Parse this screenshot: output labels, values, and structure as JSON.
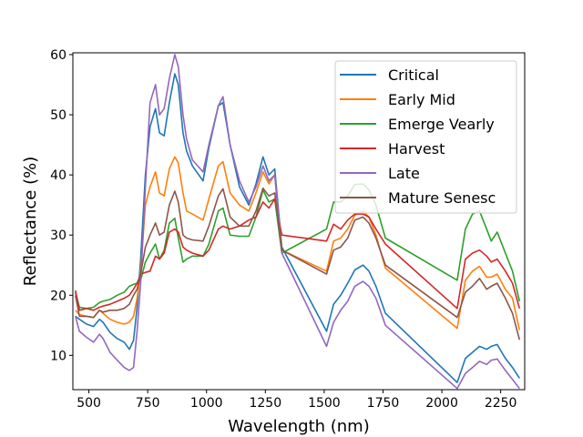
{
  "chart_data": {
    "type": "line",
    "title": "",
    "xlabel": "Wavelength (nm)",
    "ylabel": "Reflectance (%)",
    "xlim": [
      432,
      2352
    ],
    "ylim": [
      4.3,
      60.3
    ],
    "xticks": [
      500,
      750,
      1000,
      1250,
      1500,
      1750,
      2000,
      2250
    ],
    "yticks": [
      10,
      20,
      30,
      40,
      50,
      60
    ],
    "grid": false,
    "legend_position": "upper right",
    "series": [
      {
        "name": "Critical",
        "color": "#1f77b4",
        "x": [
          443,
          460,
          490,
          520,
          545,
          560,
          590,
          620,
          650,
          672,
          690,
          705,
          720,
          740,
          760,
          783,
          800,
          820,
          842,
          865,
          880,
          900,
          915,
          940,
          985,
          1010,
          1050,
          1070,
          1100,
          1140,
          1180,
          1210,
          1240,
          1265,
          1290,
          1320,
          1510,
          1540,
          1570,
          1600,
          1630,
          1665,
          1690,
          1720,
          1760,
          2065,
          2100,
          2130,
          2160,
          2190,
          2210,
          2235,
          2270,
          2300,
          2330
        ],
        "y": [
          16.5,
          16,
          15.2,
          14.8,
          16,
          15.5,
          13.8,
          12.8,
          12.2,
          11,
          12.5,
          18,
          26,
          40,
          48,
          51,
          47,
          46.5,
          52,
          56.8,
          55,
          47,
          44,
          41.5,
          39,
          44.5,
          51.5,
          52,
          45,
          38,
          35,
          38.5,
          43,
          40,
          41,
          28,
          14,
          18.5,
          20,
          22,
          24.2,
          25,
          24,
          21.5,
          17,
          5.5,
          9.5,
          10.5,
          11.5,
          11,
          11.5,
          11.8,
          9.5,
          8,
          6.2
        ]
      },
      {
        "name": "Early Mid",
        "color": "#ff7f0e",
        "x": [
          443,
          460,
          490,
          520,
          545,
          560,
          590,
          620,
          650,
          672,
          690,
          705,
          720,
          740,
          760,
          783,
          800,
          820,
          842,
          865,
          880,
          900,
          915,
          940,
          985,
          1010,
          1050,
          1070,
          1100,
          1140,
          1180,
          1210,
          1240,
          1265,
          1290,
          1320,
          1510,
          1540,
          1570,
          1600,
          1630,
          1665,
          1690,
          1720,
          1760,
          2065,
          2100,
          2130,
          2160,
          2190,
          2210,
          2235,
          2270,
          2300,
          2330
        ],
        "y": [
          17.5,
          16.8,
          16.5,
          16.3,
          17.5,
          17,
          16,
          15.5,
          15.2,
          15.5,
          16.5,
          19.5,
          24,
          35,
          38,
          40.5,
          37,
          36.5,
          41,
          43,
          42,
          37,
          34,
          33.5,
          32.5,
          36,
          41.5,
          42.2,
          37,
          35,
          34,
          37,
          40.5,
          38.5,
          40,
          27.5,
          24,
          29,
          29.5,
          31,
          33.3,
          34,
          33,
          30,
          24.5,
          14.5,
          22.5,
          24,
          24.8,
          23,
          23,
          23.5,
          21,
          19.5,
          14.2
        ]
      },
      {
        "name": "Emerge Vearly",
        "color": "#2ca02c",
        "x": [
          443,
          460,
          490,
          520,
          545,
          560,
          590,
          620,
          650,
          672,
          690,
          705,
          720,
          740,
          760,
          783,
          800,
          820,
          842,
          865,
          880,
          900,
          915,
          940,
          985,
          1010,
          1050,
          1070,
          1100,
          1140,
          1180,
          1210,
          1240,
          1265,
          1290,
          1320,
          1510,
          1540,
          1570,
          1600,
          1630,
          1665,
          1690,
          1720,
          1760,
          2065,
          2100,
          2130,
          2160,
          2190,
          2210,
          2235,
          2270,
          2300,
          2330
        ],
        "y": [
          20.5,
          18,
          17.8,
          18,
          18.8,
          19,
          19.3,
          20,
          20.5,
          21.5,
          21.8,
          22,
          22.5,
          25.5,
          27,
          28.5,
          26,
          27.5,
          32,
          32.8,
          29.5,
          25.5,
          26,
          26.5,
          26.5,
          28.5,
          34,
          34.5,
          30,
          29.8,
          29.8,
          33,
          37.5,
          35.5,
          36,
          27,
          31,
          35.5,
          35.5,
          36.5,
          38.4,
          38.5,
          37.5,
          35,
          29.5,
          22.5,
          31,
          33.5,
          34,
          31,
          29,
          30.5,
          27,
          24,
          19
        ]
      },
      {
        "name": "Harvest",
        "color": "#d62728",
        "x": [
          443,
          460,
          490,
          520,
          545,
          560,
          590,
          620,
          650,
          672,
          690,
          705,
          720,
          740,
          760,
          783,
          800,
          820,
          842,
          865,
          880,
          900,
          915,
          940,
          985,
          1010,
          1050,
          1070,
          1100,
          1140,
          1180,
          1210,
          1240,
          1265,
          1290,
          1320,
          1510,
          1540,
          1570,
          1600,
          1630,
          1665,
          1690,
          1720,
          1760,
          2065,
          2100,
          2130,
          2160,
          2190,
          2210,
          2235,
          2270,
          2300,
          2330
        ],
        "y": [
          20.8,
          17.5,
          17.8,
          17.5,
          18,
          18.2,
          18.5,
          19,
          19.5,
          20,
          21,
          22,
          23.5,
          23.8,
          24,
          26.5,
          26,
          27,
          30.5,
          31,
          30.5,
          28,
          27.5,
          27,
          26.5,
          27.5,
          31,
          31.5,
          31,
          31.5,
          32.5,
          33,
          35.5,
          34.5,
          36,
          30,
          29,
          31.8,
          31,
          32.5,
          33.5,
          33.5,
          33,
          31,
          28.5,
          17.8,
          26,
          27,
          27.5,
          26.5,
          25.5,
          26,
          24,
          22,
          17.8
        ]
      },
      {
        "name": "Late",
        "color": "#9467bd",
        "x": [
          443,
          460,
          490,
          520,
          545,
          560,
          590,
          620,
          650,
          672,
          690,
          705,
          720,
          740,
          760,
          783,
          800,
          820,
          842,
          865,
          880,
          900,
          915,
          940,
          985,
          1010,
          1050,
          1070,
          1100,
          1140,
          1180,
          1210,
          1240,
          1265,
          1290,
          1320,
          1510,
          1540,
          1570,
          1600,
          1630,
          1665,
          1690,
          1720,
          1760,
          2065,
          2100,
          2130,
          2160,
          2190,
          2210,
          2235,
          2270,
          2300,
          2330
        ],
        "y": [
          16.5,
          14,
          13,
          12.2,
          13.5,
          12.8,
          10.5,
          9.2,
          8,
          7.5,
          8,
          14,
          22,
          38,
          52,
          55,
          50,
          51,
          56,
          60,
          58,
          50,
          46,
          42.5,
          40.5,
          45,
          51.5,
          53,
          45,
          39,
          35.5,
          38,
          41.5,
          39,
          40,
          27,
          11.5,
          15.5,
          17.5,
          19,
          21.5,
          22.3,
          21.5,
          19.5,
          15,
          4.5,
          7,
          8,
          9,
          8.5,
          9.2,
          9.4,
          7.5,
          6,
          4.5
        ]
      },
      {
        "name": "Mature Senesc",
        "color": "#8c564b",
        "x": [
          443,
          460,
          490,
          520,
          545,
          560,
          590,
          620,
          650,
          672,
          690,
          705,
          720,
          740,
          760,
          783,
          800,
          820,
          842,
          865,
          880,
          900,
          915,
          940,
          985,
          1010,
          1050,
          1070,
          1100,
          1140,
          1180,
          1210,
          1240,
          1265,
          1290,
          1320,
          1510,
          1540,
          1570,
          1600,
          1630,
          1665,
          1690,
          1720,
          1760,
          2065,
          2100,
          2130,
          2160,
          2190,
          2210,
          2235,
          2270,
          2300,
          2330
        ],
        "y": [
          20,
          16.5,
          16.5,
          16.3,
          17.5,
          17.2,
          17.5,
          17.5,
          17.8,
          18.5,
          20,
          21,
          23.5,
          28,
          30,
          32,
          30,
          30.5,
          35,
          37.3,
          35.5,
          30,
          29.5,
          29.2,
          29,
          31.5,
          36.5,
          37.7,
          33,
          31.5,
          31.5,
          34,
          37.8,
          36.5,
          37,
          27.5,
          23.5,
          27.5,
          28,
          29.5,
          32.5,
          33,
          32,
          29.5,
          25,
          16.3,
          20.5,
          21.5,
          22.8,
          21,
          21.5,
          22,
          19.5,
          17,
          12.6
        ]
      }
    ]
  }
}
